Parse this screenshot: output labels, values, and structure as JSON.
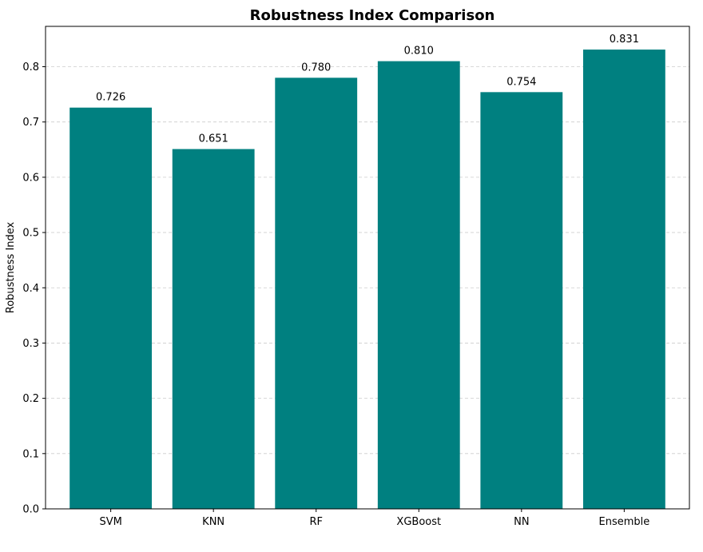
{
  "chart_data": {
    "type": "bar",
    "title": "Robustness Index Comparison",
    "xlabel": "",
    "ylabel": "Robustness Index",
    "categories": [
      "SVM",
      "KNN",
      "RF",
      "XGBoost",
      "NN",
      "Ensemble"
    ],
    "values": [
      0.726,
      0.651,
      0.78,
      0.81,
      0.754,
      0.831
    ],
    "value_labels": [
      "0.726",
      "0.651",
      "0.780",
      "0.810",
      "0.754",
      "0.831"
    ],
    "ylim": [
      0,
      0.873
    ],
    "yticks": [
      0.0,
      0.1,
      0.2,
      0.3,
      0.4,
      0.5,
      0.6,
      0.7,
      0.8
    ],
    "ytick_labels": [
      "0.0",
      "0.1",
      "0.2",
      "0.3",
      "0.4",
      "0.5",
      "0.6",
      "0.7",
      "0.8"
    ],
    "grid": "y-dashed",
    "legend": "none",
    "colors": {
      "bar": "#008080",
      "grid": "#cccccc",
      "axis": "#000000"
    }
  }
}
